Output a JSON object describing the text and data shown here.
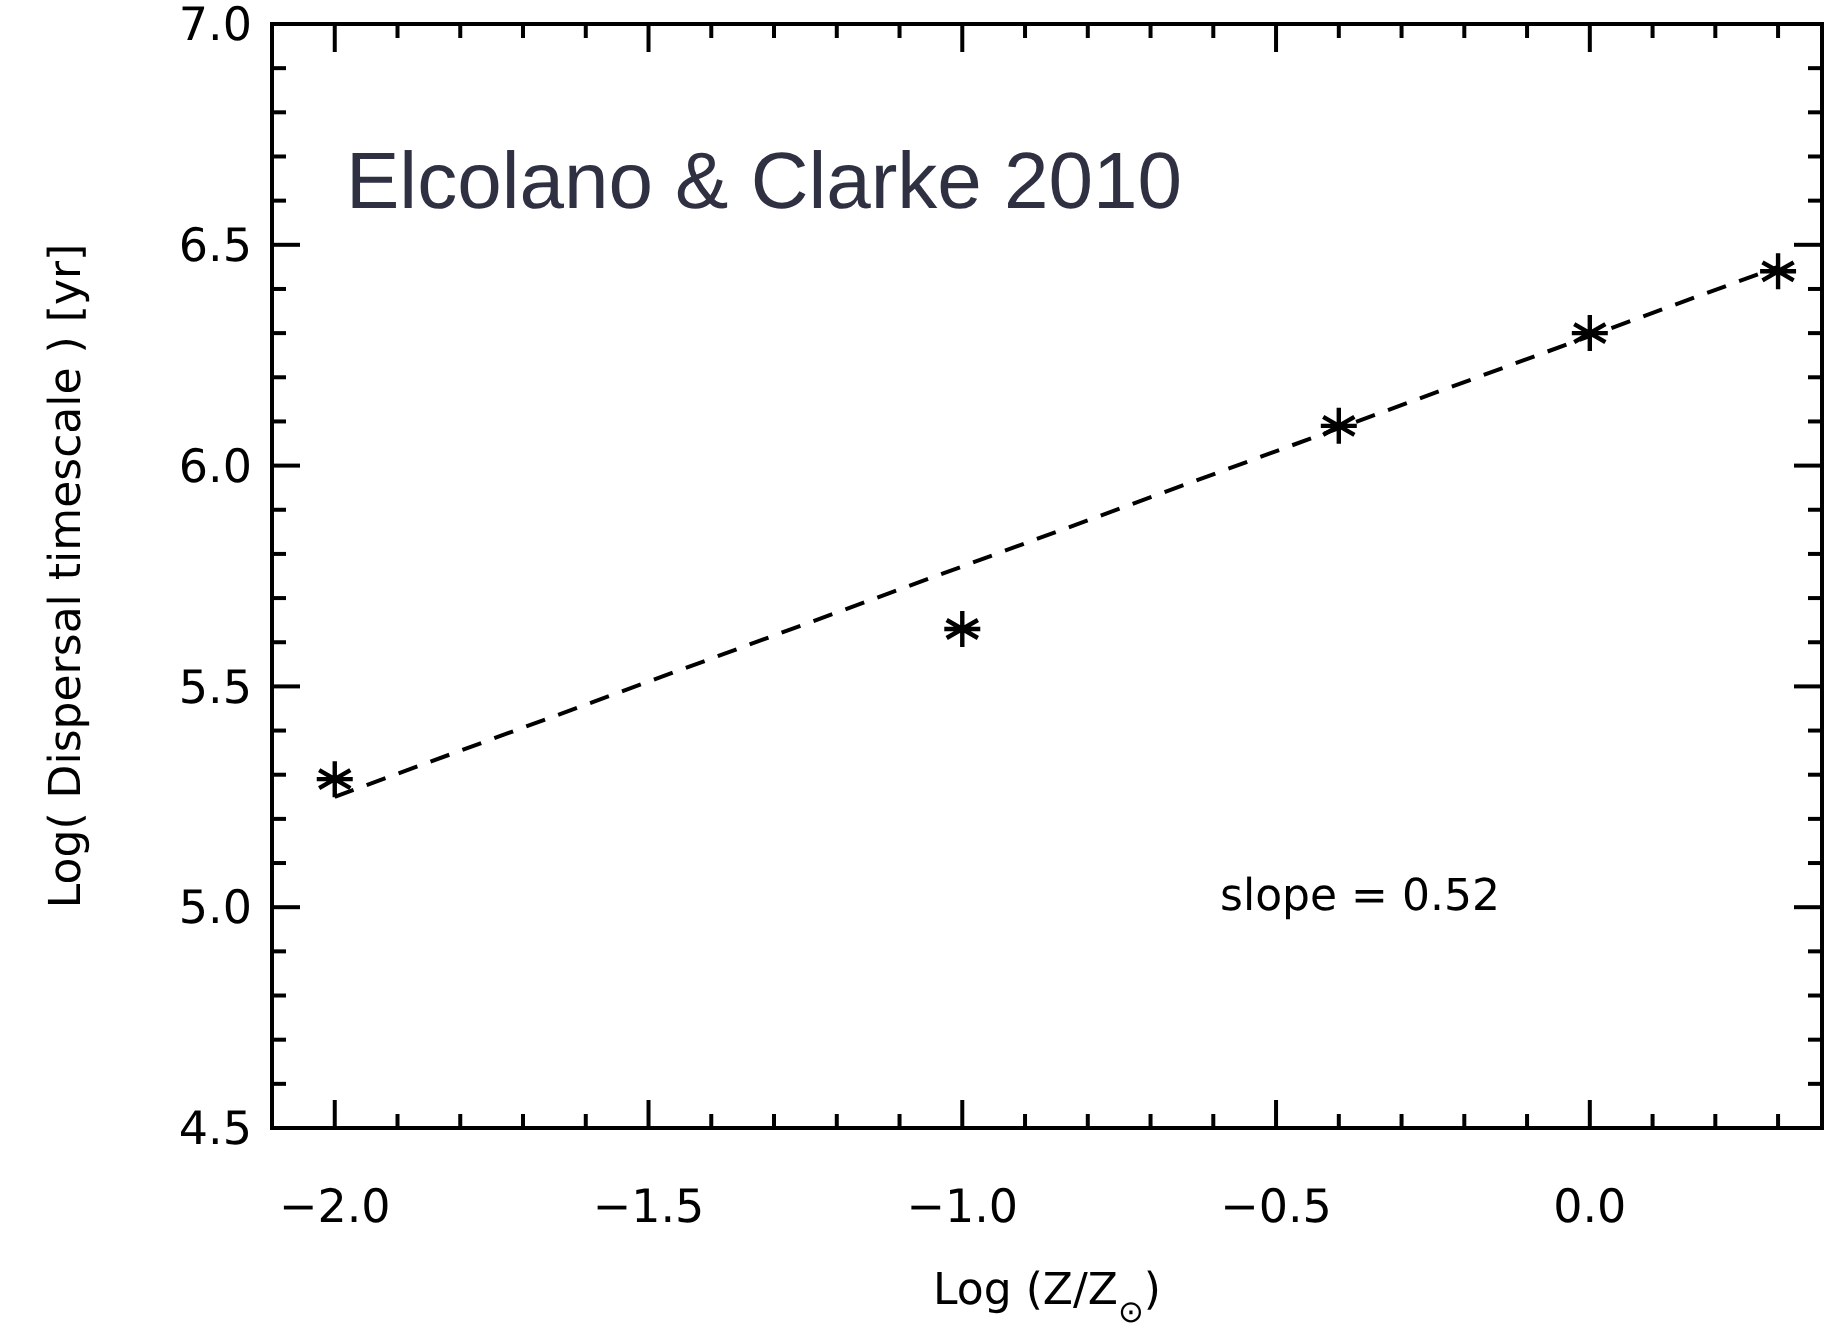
{
  "chart_data": {
    "type": "scatter",
    "title": "Elcolano & Clarke 2010",
    "xlabel": "Log (Z/Z$_{⊙}$)",
    "ylabel": "Log( Dispersal timescale ) [yr]",
    "annotations": [
      "slope = 0.52"
    ],
    "xlim": [
      -2.1,
      0.37
    ],
    "xticks": [
      {
        "value": -2.0,
        "label": "−2.0"
      },
      {
        "value": -1.9,
        "label": null
      },
      {
        "value": -1.8,
        "label": null
      },
      {
        "value": -1.7,
        "label": null
      },
      {
        "value": -1.6,
        "label": null
      },
      {
        "value": -1.5,
        "label": "−1.5"
      },
      {
        "value": -1.4,
        "label": null
      },
      {
        "value": -1.3,
        "label": null
      },
      {
        "value": -1.2,
        "label": null
      },
      {
        "value": -1.1,
        "label": null
      },
      {
        "value": -1.0,
        "label": "−1.0"
      },
      {
        "value": -0.9,
        "label": null
      },
      {
        "value": -0.8,
        "label": null
      },
      {
        "value": -0.7,
        "label": null
      },
      {
        "value": -0.6,
        "label": null
      },
      {
        "value": -0.5,
        "label": "−0.5"
      },
      {
        "value": -0.4,
        "label": null
      },
      {
        "value": -0.3,
        "label": null
      },
      {
        "value": -0.2,
        "label": null
      },
      {
        "value": -0.1,
        "label": null
      },
      {
        "value": 0.0,
        "label": "0.0"
      },
      {
        "value": 0.1,
        "label": null
      },
      {
        "value": 0.2,
        "label": null
      },
      {
        "value": 0.3,
        "label": null
      }
    ],
    "ylim": [
      4.5,
      7.0
    ],
    "yticks": [
      {
        "value": 4.5,
        "label": "4.5"
      },
      {
        "value": 4.6,
        "label": null
      },
      {
        "value": 4.7,
        "label": null
      },
      {
        "value": 4.8,
        "label": null
      },
      {
        "value": 4.9,
        "label": null
      },
      {
        "value": 5.0,
        "label": "5.0"
      },
      {
        "value": 5.1,
        "label": null
      },
      {
        "value": 5.2,
        "label": null
      },
      {
        "value": 5.3,
        "label": null
      },
      {
        "value": 5.4,
        "label": null
      },
      {
        "value": 5.5,
        "label": "5.5"
      },
      {
        "value": 5.6,
        "label": null
      },
      {
        "value": 5.7,
        "label": null
      },
      {
        "value": 5.8,
        "label": null
      },
      {
        "value": 5.9,
        "label": null
      },
      {
        "value": 6.0,
        "label": "6.0"
      },
      {
        "value": 6.1,
        "label": null
      },
      {
        "value": 6.2,
        "label": null
      },
      {
        "value": 6.3,
        "label": null
      },
      {
        "value": 6.4,
        "label": null
      },
      {
        "value": 6.5,
        "label": "6.5"
      },
      {
        "value": 6.6,
        "label": null
      },
      {
        "value": 6.7,
        "label": null
      },
      {
        "value": 6.8,
        "label": null
      },
      {
        "value": 6.9,
        "label": null
      },
      {
        "value": 7.0,
        "label": "7.0"
      }
    ],
    "grid": false,
    "series": [
      {
        "color": "#000000",
        "marker": "cross",
        "x": [
          -2.0,
          -1.0,
          -0.4,
          0.0,
          0.3
        ],
        "values": [
          5.29,
          5.63,
          6.09,
          6.3,
          6.44
        ]
      },
      {
        "type": "line",
        "color": "#000000",
        "marker": "none",
        "line_style": "dashed",
        "x": [
          -2.0,
          0.3
        ],
        "values": [
          5.25,
          6.45
        ]
      }
    ]
  }
}
